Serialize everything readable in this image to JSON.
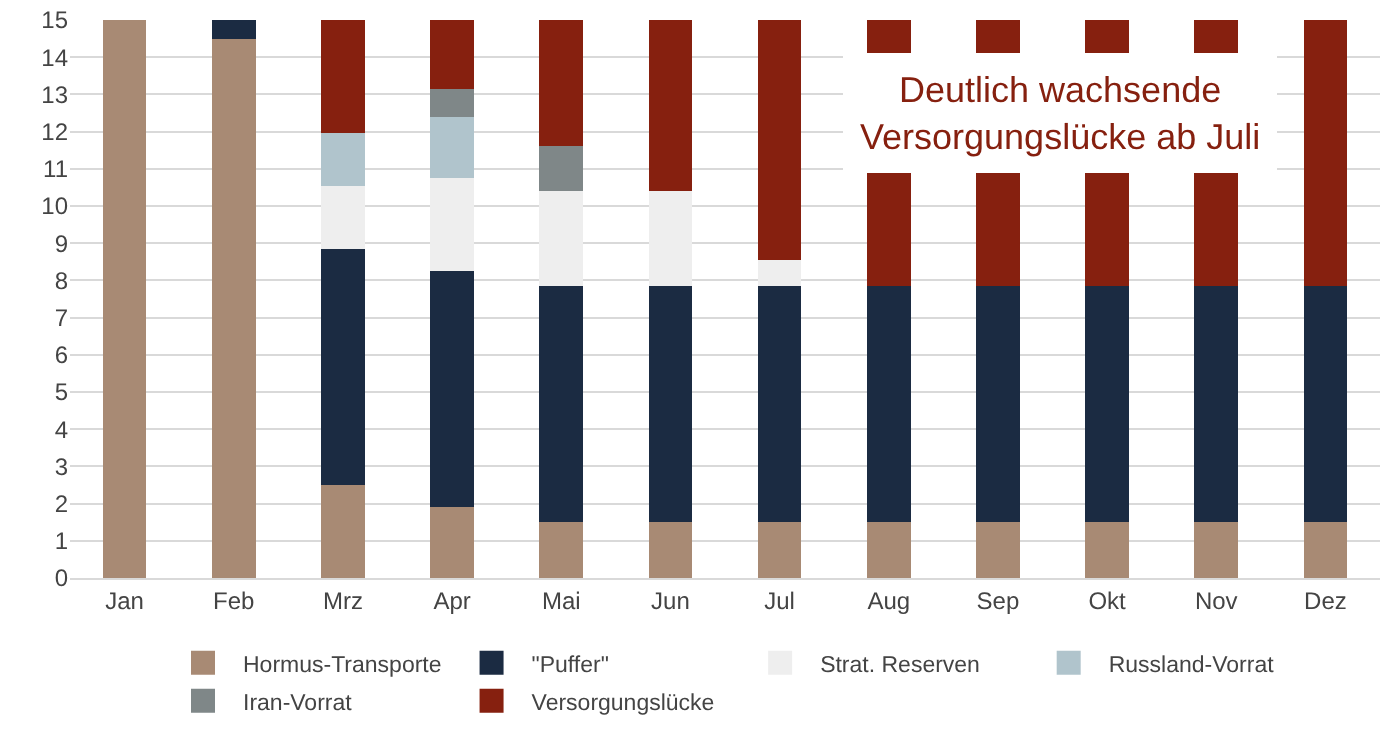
{
  "chart_data": {
    "type": "bar",
    "stacked": true,
    "categories": [
      "Jan",
      "Feb",
      "Mrz",
      "Apr",
      "Mai",
      "Jun",
      "Jul",
      "Aug",
      "Sep",
      "Okt",
      "Nov",
      "Dez"
    ],
    "series": [
      {
        "name": "Hormus-Transporte",
        "color": "#a88a74",
        "values": [
          15,
          14.5,
          2.5,
          1.9,
          1.5,
          1.5,
          1.5,
          1.5,
          1.5,
          1.5,
          1.5,
          1.5
        ]
      },
      {
        "name": "\"Puffer\"",
        "color": "#1b2b42",
        "values": [
          null,
          0.5,
          6.35,
          6.35,
          6.35,
          6.35,
          6.35,
          6.35,
          6.35,
          6.35,
          6.35,
          6.35
        ]
      },
      {
        "name": "Strat. Reserven",
        "color": "#eeeeee",
        "values": [
          null,
          null,
          1.7,
          2.5,
          2.55,
          2.55,
          0.7,
          null,
          null,
          null,
          null,
          null
        ]
      },
      {
        "name": "Russland-Vorrat",
        "color": "#b0c4cc",
        "values": [
          null,
          null,
          1.4,
          1.65,
          null,
          null,
          null,
          null,
          null,
          null,
          null,
          null
        ]
      },
      {
        "name": "Iran-Vorrat",
        "color": "#7f8788",
        "values": [
          null,
          null,
          null,
          0.75,
          1.2,
          null,
          null,
          null,
          null,
          null,
          null,
          null
        ]
      },
      {
        "name": "Versorgungslücke",
        "color": "#86200f",
        "values": [
          null,
          null,
          3.05,
          1.85,
          3.4,
          4.6,
          6.45,
          7.15,
          7.15,
          7.15,
          7.15,
          7.15
        ]
      }
    ],
    "ylim": [
      0,
      15
    ],
    "yticks": [
      0,
      1,
      2,
      3,
      4,
      5,
      6,
      7,
      8,
      9,
      10,
      11,
      12,
      13,
      14,
      15
    ],
    "grid": "y",
    "legend": "bottom",
    "annotations": [
      "Deutlich wachsende\nVersorgungslücke ab Juli"
    ]
  }
}
